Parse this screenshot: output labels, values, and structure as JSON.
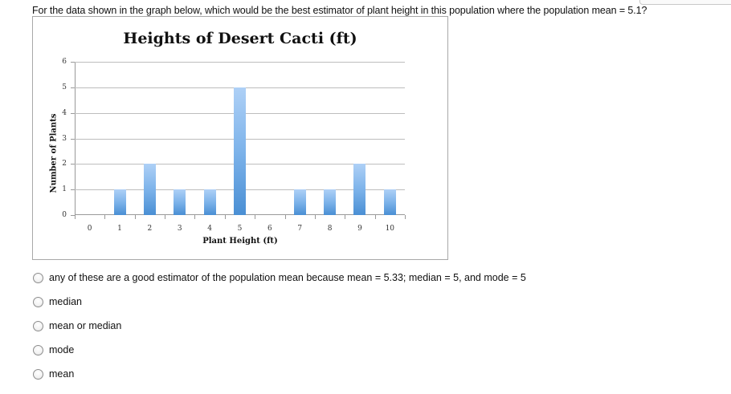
{
  "question": {
    "text": "For the data shown in the graph below, which would be the best estimator of plant height in this population where the population mean = 5.1?"
  },
  "chart": {
    "title": "Heights of Desert Cacti (ft)",
    "xlabel": "Plant Height (ft)",
    "ylabel": "Number of Plants",
    "y_ticks": [
      "0",
      "1",
      "2",
      "3",
      "4",
      "5",
      "6"
    ],
    "x_ticks": [
      "0",
      "1",
      "2",
      "3",
      "4",
      "5",
      "6",
      "7",
      "8",
      "9",
      "10"
    ],
    "bar_color_top": "#aed0f6",
    "bar_color_bottom": "#4a8fd4"
  },
  "chart_data": {
    "type": "bar",
    "title": "Heights of Desert Cacti (ft)",
    "xlabel": "Plant Height (ft)",
    "ylabel": "Number of Plants",
    "categories": [
      "0",
      "1",
      "2",
      "3",
      "4",
      "5",
      "6",
      "7",
      "8",
      "9",
      "10"
    ],
    "values": [
      0,
      1,
      2,
      1,
      1,
      5,
      0,
      1,
      1,
      2,
      1
    ],
    "ylim": [
      0,
      6
    ],
    "yticks": [
      0,
      1,
      2,
      3,
      4,
      5,
      6
    ],
    "grid": true,
    "legend": null
  },
  "options": [
    {
      "label": "any of these are a good estimator of the population mean because mean = 5.33; median = 5, and mode = 5"
    },
    {
      "label": "median"
    },
    {
      "label": "mean or median"
    },
    {
      "label": "mode"
    },
    {
      "label": "mean"
    }
  ]
}
